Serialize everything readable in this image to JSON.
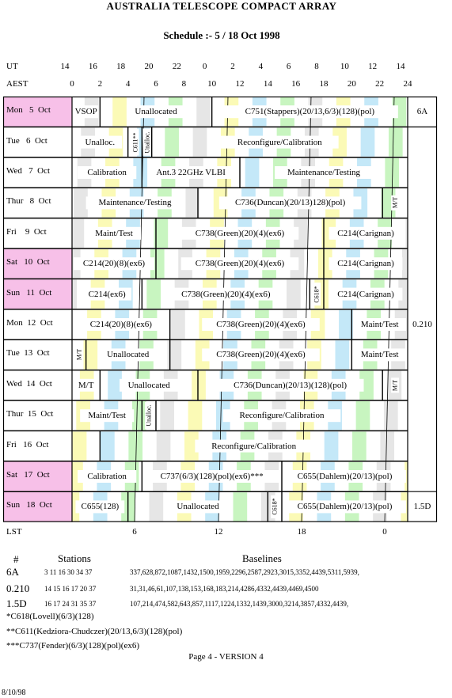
{
  "header": {
    "title": "AUSTRALIA TELESCOPE COMPACT ARRAY",
    "subtitle": "Schedule :- 5 / 18 Oct 1998"
  },
  "axes": {
    "ut_label": "UT",
    "aest_label": "AEST",
    "lst_label": "LST",
    "ut_ticks": [
      "14",
      "16",
      "18",
      "20",
      "22",
      "0",
      "2",
      "4",
      "6",
      "8",
      "10",
      "12",
      "14"
    ],
    "aest_ticks": [
      "0",
      "2",
      "4",
      "6",
      "8",
      "10",
      "12",
      "14",
      "16",
      "18",
      "20",
      "22",
      "24"
    ],
    "lst_ticks": [
      "6",
      "12",
      "18",
      "0"
    ]
  },
  "colors": {
    "pink": "#f7c0e8",
    "yellow": "#fbfab6",
    "green": "#c8f5c0",
    "blue": "#c4e8f8",
    "grey": "#e6e6e6"
  },
  "days": [
    {
      "label": "Mon   5  Oct",
      "weekend": true,
      "blocks": [
        {
          "text": "VSOP",
          "start": 0,
          "end": 2
        },
        {
          "text": "Unallocated",
          "start": 2,
          "end": 10
        },
        {
          "text": "C751(Stappers)(20/13,6/3)(128)(pol)",
          "start": 10,
          "end": 24
        }
      ]
    },
    {
      "label": "Tue   6  Oct",
      "weekend": false,
      "blocks": [
        {
          "text": "Unalloc.",
          "start": 0,
          "end": 4
        },
        {
          "text": "C611**",
          "start": 4,
          "end": 5,
          "vertical": true
        },
        {
          "text": "Unalloc.",
          "start": 5,
          "end": 5.7,
          "vertical": true
        },
        {
          "text": "Reconfigure/Calibration",
          "start": 5.7,
          "end": 24
        }
      ]
    },
    {
      "label": "Wed   7  Oct",
      "weekend": false,
      "blocks": [
        {
          "text": "Calibration",
          "start": 0,
          "end": 5
        },
        {
          "text": "Ant.3 22GHz VLBI",
          "start": 5,
          "end": 12
        },
        {
          "text": "Maintenance/Testing",
          "start": 12,
          "end": 24
        }
      ]
    },
    {
      "label": "Thur   8  Oct",
      "weekend": false,
      "blocks": [
        {
          "text": "Maintenance/Testing",
          "start": 0,
          "end": 9
        },
        {
          "text": "C736(Duncan)(20/13)128)(pol)",
          "start": 9,
          "end": 22.2
        },
        {
          "text": "M/T",
          "start": 22.2,
          "end": 24,
          "vertical": true
        }
      ]
    },
    {
      "label": "Fri    9  Oct",
      "weekend": false,
      "blocks": [
        {
          "text": "Maint/Test",
          "start": 0,
          "end": 6
        },
        {
          "text": "C738(Green)(20)(4)(ex6)",
          "start": 6,
          "end": 18
        },
        {
          "text": "C214(Carignan)",
          "start": 18,
          "end": 24
        }
      ]
    },
    {
      "label": "Sat   10  Oct",
      "weekend": true,
      "blocks": [
        {
          "text": "C214(20)(8)(ex6)",
          "start": 0,
          "end": 6
        },
        {
          "text": "C738(Green)(20)(4)(ex6)",
          "start": 6,
          "end": 18
        },
        {
          "text": "C214(Carignan)",
          "start": 18,
          "end": 24
        }
      ]
    },
    {
      "label": "Sun   11  Oct",
      "weekend": true,
      "blocks": [
        {
          "text": "C214(ex6)",
          "start": 0,
          "end": 5
        },
        {
          "text": "C738(Green)(20)(4)(ex6)",
          "start": 5,
          "end": 17
        },
        {
          "text": "C618*",
          "start": 17,
          "end": 18,
          "vertical": true
        },
        {
          "text": "C214(Carignan)",
          "start": 18,
          "end": 24
        }
      ]
    },
    {
      "label": "Mon  12  Oct",
      "weekend": false,
      "blocks": [
        {
          "text": "C214(20)(8)(ex6)",
          "start": 0,
          "end": 7
        },
        {
          "text": "C738(Green)(20)(4)(ex6)",
          "start": 7,
          "end": 20
        },
        {
          "text": "Maint/Test",
          "start": 20,
          "end": 24
        }
      ]
    },
    {
      "label": "Tue  13  Oct",
      "weekend": false,
      "blocks": [
        {
          "text": "M/T",
          "start": 0,
          "end": 1,
          "vertical": true
        },
        {
          "text": "Unallocated",
          "start": 1,
          "end": 7
        },
        {
          "text": "C738(Green)(20)(4)(ex6)",
          "start": 7,
          "end": 20
        },
        {
          "text": "Maint/Test",
          "start": 20,
          "end": 24
        }
      ]
    },
    {
      "label": "Wed  14  Oct",
      "weekend": false,
      "blocks": [
        {
          "text": "M/T",
          "start": 0,
          "end": 2
        },
        {
          "text": "Unallocated",
          "start": 2,
          "end": 9
        },
        {
          "text": "C736(Duncan)(20/13)(128)(pol)",
          "start": 9,
          "end": 22.2
        },
        {
          "text": "M/T",
          "start": 22.2,
          "end": 24,
          "vertical": true
        }
      ]
    },
    {
      "label": "Thur  15  Oct",
      "weekend": false,
      "blocks": [
        {
          "text": "Maint/Test",
          "start": 0,
          "end": 5
        },
        {
          "text": "Unalloc.",
          "start": 5,
          "end": 6,
          "vertical": true
        },
        {
          "text": "Reconfigure/Calibration",
          "start": 6,
          "end": 24
        }
      ]
    },
    {
      "label": "Fri   16  Oct",
      "weekend": false,
      "blocks": [
        {
          "text": "",
          "start": 0,
          "end": 2
        },
        {
          "text": "Reconfigure/Calibration",
          "start": 2,
          "end": 24
        }
      ]
    },
    {
      "label": "Sat   17  Oct",
      "weekend": true,
      "blocks": [
        {
          "text": "Calibration",
          "start": 0,
          "end": 5
        },
        {
          "text": "C737(6/3)(128)(pol)(ex6)***",
          "start": 5,
          "end": 15
        },
        {
          "text": "C655(Dahlem)(20/13)(pol)",
          "start": 15,
          "end": 24
        }
      ]
    },
    {
      "label": "Sun   18  Oct",
      "weekend": true,
      "blocks": [
        {
          "text": "C655(128)",
          "start": 0,
          "end": 4
        },
        {
          "text": "Unallocated",
          "start": 4,
          "end": 14
        },
        {
          "text": "C618*",
          "start": 14,
          "end": 15,
          "vertical": true
        },
        {
          "text": "C655(Dahlem)(20/13)(pol)",
          "start": 15,
          "end": 24
        }
      ]
    }
  ],
  "configs": [
    {
      "label": "6A",
      "row": 0
    },
    {
      "label": "0.210",
      "row": 7
    },
    {
      "label": "1.5D",
      "row": 13
    }
  ],
  "footer": {
    "hash_label": "#",
    "stations_label": "Stations",
    "baselines_label": "Baselines",
    "arrays": [
      {
        "name": "6A",
        "stations": "3 11 16 30 34 37",
        "baselines": "337,628,872,1087,1432,1500,1959,2296,2587,2923,3015,3352,4439,5311,5939,"
      },
      {
        "name": "0.210",
        "stations": "14 15 16 17 20 37",
        "baselines": "31,31,46,61,107,138,153,168,183,214,4286,4332,4439,4469,4500"
      },
      {
        "name": "1.5D",
        "stations": "16 17 24 31 35 37",
        "baselines": "107,214,474,582,643,857,1117,1224,1332,1439,3000,3214,3857,4332,4439,"
      }
    ],
    "notes": [
      "*C618(Lovell)(6/3)(128)",
      "**C611(Kedziora-Chudczer)(20/13,6/3)(128)(pol)",
      "***C737(Fender)(6/3)(128)(pol)(ex6)"
    ],
    "page": "Page 4  - VERSION 4",
    "date": "8/10/98"
  }
}
